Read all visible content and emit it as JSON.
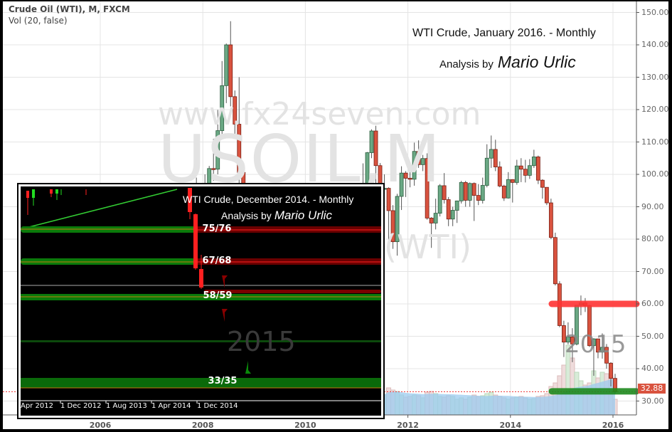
{
  "header": {
    "symbol_line": "Crude Oil (WTI), M, FXCM",
    "indicator_line": "Vol (20, false)"
  },
  "annotations": {
    "title": "WTI Crude, January 2016. - Monthly",
    "analysis_prefix": "Analysis by",
    "author": "Mario Urlic",
    "watermark_url": "www.fx24seven.com",
    "watermark_symbol": "USOIL,M",
    "watermark_name": "(WTI)",
    "year_label": "2015"
  },
  "chart_data": {
    "type": "candlestick",
    "interval": "monthly",
    "y_axis": {
      "ticks": [
        "150.00",
        "140.00",
        "130.00",
        "120.00",
        "110.00",
        "100.00",
        "90.00",
        "80.00",
        "70.00",
        "60.00",
        "50.00",
        "40.00",
        "30.00"
      ],
      "range": [
        25,
        152
      ],
      "position": "right"
    },
    "x_axis": {
      "ticks": [
        "2006",
        "2008",
        "2010",
        "2012",
        "2014",
        "2016"
      ]
    },
    "grid": true,
    "last_price": "32.88",
    "last_price_value": 32.88,
    "levels": [
      {
        "value": 60,
        "color": "#ff3333"
      },
      {
        "value": 33,
        "color": "#1e8a1e"
      }
    ],
    "colors": {
      "up": "#6aa884",
      "down": "#d9533f",
      "volume_up": "#d8ecd8",
      "volume_down": "#efdcdc",
      "volume_ma": "#9ccbef"
    },
    "start_month": "2007-01",
    "ohlc": [
      [
        61,
        61.5,
        50,
        58
      ],
      [
        58,
        62.5,
        56,
        62
      ],
      [
        62,
        68,
        56,
        66
      ],
      [
        66,
        68,
        62,
        66
      ],
      [
        66,
        67,
        61,
        64
      ],
      [
        64,
        70.5,
        64,
        70.7
      ],
      [
        70.7,
        78.8,
        70,
        78.2
      ],
      [
        78.2,
        78.8,
        69,
        74
      ],
      [
        74,
        83.8,
        73.5,
        81.7
      ],
      [
        81.7,
        95,
        79,
        94
      ],
      [
        94,
        99,
        88,
        88.7
      ],
      [
        88.7,
        96.8,
        86,
        96
      ],
      [
        96,
        100,
        86,
        91.7
      ],
      [
        91.7,
        102.6,
        86,
        101.8
      ],
      [
        101.8,
        111,
        98,
        101.6
      ],
      [
        101.6,
        119.9,
        100,
        113.5
      ],
      [
        113.5,
        135,
        112,
        127.4
      ],
      [
        127.4,
        140.4,
        122,
        140
      ],
      [
        140,
        147.3,
        121,
        124
      ],
      [
        124,
        125.9,
        112,
        115.5
      ],
      [
        115.5,
        130,
        90,
        100.6
      ],
      [
        100.6,
        102,
        62,
        67.8
      ],
      [
        67.8,
        72,
        49,
        54.4
      ],
      [
        54.4,
        55,
        32,
        44.6
      ],
      [
        44.6,
        48,
        33,
        41.7
      ],
      [
        41.7,
        45,
        34,
        44.8
      ],
      [
        44.8,
        54,
        37,
        49.7
      ],
      [
        49.7,
        54,
        45,
        51
      ],
      [
        51,
        66.5,
        48,
        66.3
      ],
      [
        66.3,
        73.4,
        65,
        69.9
      ],
      [
        69.9,
        72,
        59,
        69.5
      ],
      [
        69.5,
        75,
        67,
        70
      ],
      [
        70,
        72.5,
        65,
        70.6
      ],
      [
        70.6,
        82,
        69,
        77
      ],
      [
        77,
        81,
        74,
        77.3
      ],
      [
        77.3,
        80,
        69,
        79.4
      ],
      [
        79.4,
        83.9,
        72,
        72.9
      ],
      [
        72.9,
        80.5,
        69.5,
        79.7
      ],
      [
        79.7,
        83.8,
        78,
        83.8
      ],
      [
        83.8,
        87,
        80,
        86.2
      ],
      [
        86.2,
        87,
        64,
        74
      ],
      [
        74,
        79,
        71,
        75.6
      ],
      [
        75.6,
        79,
        71,
        78.9
      ],
      [
        78.9,
        82.5,
        71,
        71.9
      ],
      [
        71.9,
        80,
        70.8,
        79.97
      ],
      [
        79.97,
        84,
        79,
        81.4
      ],
      [
        81.4,
        88.6,
        79.5,
        84.1
      ],
      [
        84.1,
        92,
        84,
        91.4
      ],
      [
        91.4,
        92.6,
        85,
        92.2
      ],
      [
        92.2,
        103.4,
        84,
        97
      ],
      [
        97,
        106.9,
        96,
        106.7
      ],
      [
        106.7,
        113.9,
        105,
        113.4
      ],
      [
        113.4,
        115,
        95,
        102.7
      ],
      [
        102.7,
        103.5,
        89.6,
        95.4
      ],
      [
        95.4,
        100,
        94,
        95.7
      ],
      [
        95.7,
        96,
        75.7,
        88.8
      ],
      [
        88.8,
        90.5,
        77,
        79.2
      ],
      [
        79.2,
        94,
        74.9,
        93.2
      ],
      [
        93.2,
        102.5,
        89,
        100.4
      ],
      [
        100.4,
        101,
        93,
        98.8
      ],
      [
        98.8,
        103,
        96,
        98.5
      ],
      [
        98.5,
        109.8,
        96.5,
        107.1
      ],
      [
        107.1,
        110.5,
        102,
        103
      ],
      [
        103,
        106,
        101,
        104.9
      ],
      [
        104.9,
        106.5,
        86,
        86.5
      ],
      [
        86.5,
        86.8,
        77.3,
        84.96
      ],
      [
        84.96,
        92.5,
        83,
        88
      ],
      [
        88,
        97,
        87,
        96.5
      ],
      [
        96.5,
        100.4,
        91,
        92.2
      ],
      [
        92.2,
        93,
        84,
        86.2
      ],
      [
        86.2,
        90,
        84,
        88.9
      ],
      [
        88.9,
        91.9,
        85,
        91.8
      ],
      [
        91.8,
        98,
        91,
        97.5
      ],
      [
        97.5,
        98,
        90,
        92
      ],
      [
        92,
        97.5,
        90,
        97.2
      ],
      [
        97.2,
        97.5,
        85.6,
        93.5
      ],
      [
        93.5,
        97,
        90.5,
        91.97
      ],
      [
        91.97,
        99,
        91,
        96.6
      ],
      [
        96.6,
        109.3,
        96,
        105
      ],
      [
        105,
        112,
        102,
        107.7
      ],
      [
        107.7,
        110.7,
        101,
        102.3
      ],
      [
        102.3,
        104,
        96,
        96.4
      ],
      [
        96.4,
        96.8,
        91.8,
        92.7
      ],
      [
        92.7,
        100.7,
        92.5,
        98.4
      ],
      [
        98.4,
        98.5,
        91.3,
        97.5
      ],
      [
        97.5,
        104.5,
        96.8,
        102.6
      ],
      [
        102.6,
        105,
        97.6,
        101.6
      ],
      [
        101.6,
        104.5,
        97.5,
        99.7
      ],
      [
        99.7,
        104.7,
        98.6,
        102.7
      ],
      [
        102.7,
        107.6,
        102,
        105.4
      ],
      [
        105.4,
        105.8,
        97,
        98.2
      ],
      [
        98.2,
        98.5,
        92.5,
        96
      ],
      [
        96,
        95.9,
        90.5,
        91.2
      ],
      [
        91.2,
        92.5,
        80,
        80.5
      ],
      [
        80.5,
        82,
        65.7,
        66.2
      ],
      [
        66.2,
        67,
        52.8,
        53.3
      ],
      [
        53.3,
        54.8,
        43.6,
        48.2
      ],
      [
        48.2,
        54.3,
        47.5,
        49.8
      ],
      [
        49.8,
        52.5,
        42,
        47.6
      ],
      [
        47.6,
        59.5,
        47.2,
        59.6
      ],
      [
        59.6,
        62.6,
        56.5,
        60.3
      ],
      [
        60.3,
        61.8,
        57.5,
        59.5
      ],
      [
        59.5,
        59.7,
        46.7,
        47.1
      ],
      [
        47.1,
        49.4,
        37.8,
        49.2
      ],
      [
        49.2,
        49,
        43.2,
        45.1
      ],
      [
        45.1,
        50.9,
        43.1,
        46.6
      ],
      [
        46.6,
        47.6,
        40,
        41.7
      ],
      [
        41.7,
        42,
        34.5,
        37
      ],
      [
        37,
        38.4,
        32.2,
        32.88
      ]
    ],
    "volume_start_month": "2011-06",
    "volume_relative": [
      30,
      28,
      38,
      35,
      33,
      28,
      25,
      26,
      28,
      27,
      24,
      32,
      33,
      30,
      26,
      25,
      27,
      26,
      22,
      24,
      22,
      25,
      28,
      26,
      27,
      30,
      32,
      28,
      26,
      24,
      22,
      24,
      25,
      26,
      24,
      22,
      23,
      26,
      27,
      30,
      40,
      45,
      55,
      70,
      98,
      80,
      60,
      48,
      42,
      45,
      62,
      52,
      60,
      58,
      55,
      22
    ],
    "volume_ma_period": 20
  },
  "inset": {
    "title": "WTI Crude, December 2014. - Monthly",
    "analysis_prefix": "Analysis by",
    "author": "Mario Urlic",
    "year_label": "2015",
    "levels": [
      "75/76",
      "67/68",
      "58/59",
      "33/35"
    ],
    "x_ticks": [
      "Apr 2012",
      "1 Dec 2012",
      "1 Aug 2013",
      "1 Apr 2014",
      "1 Dec 2014"
    ],
    "colors": {
      "support": "#0a7a0a",
      "resistance": "#6b0000"
    }
  }
}
